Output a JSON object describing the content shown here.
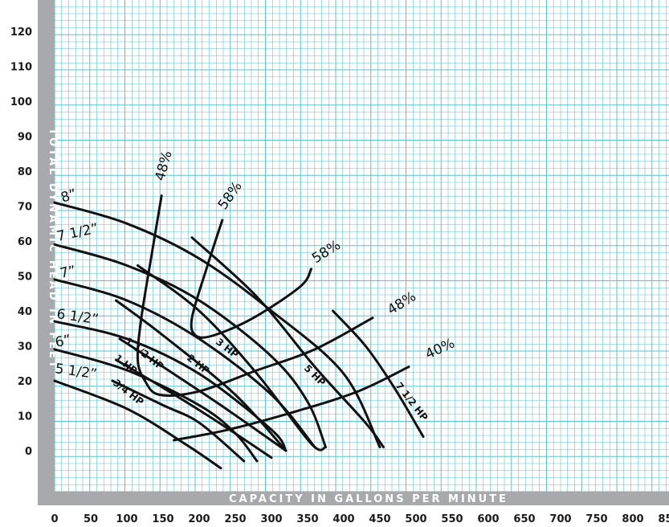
{
  "chart_data": {
    "type": "line",
    "xlabel": "CAPACITY IN GALLONS PER MINUTE",
    "ylabel": "TOTAL DYNAMIC HEAD IN FEET",
    "x_ticks": [
      "0",
      "50",
      "100",
      "150",
      "200",
      "250",
      "300",
      "350",
      "400",
      "450",
      "500",
      "550",
      "600",
      "650",
      "700",
      "750",
      "800",
      "850"
    ],
    "y_ticks": [
      "0",
      "10",
      "20",
      "30",
      "40",
      "50",
      "60",
      "70",
      "80",
      "90",
      "100",
      "110",
      "120"
    ],
    "xlim": [
      0,
      850
    ],
    "ylim": [
      -10,
      130
    ],
    "grid": true,
    "colors": {
      "grid": "#5bc3cc",
      "axis_band": "#a7a9ac",
      "curve": "#111111"
    },
    "impeller_curves": [
      {
        "label": "8”",
        "points": [
          [
            0,
            71
          ],
          [
            100,
            65
          ],
          [
            200,
            55
          ],
          [
            300,
            40
          ],
          [
            400,
            22
          ],
          [
            450,
            1
          ]
        ]
      },
      {
        "label": "7 1/2”",
        "points": [
          [
            0,
            59
          ],
          [
            100,
            53
          ],
          [
            200,
            43
          ],
          [
            300,
            27
          ],
          [
            350,
            14
          ],
          [
            375,
            1
          ]
        ]
      },
      {
        "label": "7”",
        "points": [
          [
            0,
            49
          ],
          [
            100,
            43
          ],
          [
            200,
            32
          ],
          [
            300,
            16
          ],
          [
            360,
            1
          ]
        ]
      },
      {
        "label": "6 1/2”",
        "points": [
          [
            0,
            37
          ],
          [
            100,
            32
          ],
          [
            200,
            22
          ],
          [
            300,
            6
          ],
          [
            320,
            0
          ]
        ]
      },
      {
        "label": "6”",
        "points": [
          [
            0,
            29
          ],
          [
            100,
            23
          ],
          [
            200,
            13
          ],
          [
            250,
            5
          ],
          [
            280,
            -3
          ]
        ]
      },
      {
        "label": "5 1/2”",
        "points": [
          [
            0,
            20
          ],
          [
            100,
            12
          ],
          [
            180,
            2
          ],
          [
            230,
            -5
          ]
        ]
      }
    ],
    "hp_curves": [
      {
        "label": "3/4 HP",
        "points": [
          [
            80,
            20
          ],
          [
            150,
            13
          ],
          [
            200,
            8
          ],
          [
            262,
            -3
          ]
        ]
      },
      {
        "label": "1 HP",
        "points": [
          [
            85,
            26
          ],
          [
            150,
            18
          ],
          [
            220,
            9
          ],
          [
            300,
            -2
          ]
        ]
      },
      {
        "label": "1 1/2 HP",
        "points": [
          [
            90,
            32
          ],
          [
            150,
            24
          ],
          [
            230,
            13
          ],
          [
            320,
            0
          ]
        ]
      },
      {
        "label": "2 HP",
        "points": [
          [
            85,
            43
          ],
          [
            150,
            33
          ],
          [
            250,
            16
          ],
          [
            320,
            0
          ]
        ]
      },
      {
        "label": "3 HP",
        "points": [
          [
            115,
            53
          ],
          [
            200,
            40
          ],
          [
            280,
            22
          ],
          [
            355,
            2
          ],
          [
            375,
            1
          ]
        ]
      },
      {
        "label": "5 HP",
        "points": [
          [
            190,
            61
          ],
          [
            280,
            44
          ],
          [
            360,
            24
          ],
          [
            430,
            8
          ],
          [
            455,
            1
          ]
        ]
      },
      {
        "label": "7 1/2 HP",
        "points": [
          [
            385,
            40
          ],
          [
            430,
            30
          ],
          [
            470,
            18
          ],
          [
            510,
            4
          ]
        ]
      }
    ],
    "efficiency_curves": [
      {
        "label": "48%",
        "points": [
          [
            148,
            73
          ],
          [
            135,
            57
          ],
          [
            120,
            38
          ],
          [
            115,
            26
          ],
          [
            125,
            20
          ],
          [
            145,
            16
          ],
          [
            200,
            17
          ],
          [
            280,
            23
          ],
          [
            360,
            29
          ],
          [
            440,
            38
          ]
        ]
      },
      {
        "label": "58%",
        "points": [
          [
            232,
            66
          ],
          [
            210,
            52
          ],
          [
            190,
            38
          ],
          [
            195,
            33
          ],
          [
            220,
            33
          ],
          [
            275,
            38
          ],
          [
            340,
            47
          ],
          [
            355,
            52
          ]
        ]
      },
      {
        "label": "40%",
        "points": [
          [
            165,
            3
          ],
          [
            240,
            6
          ],
          [
            330,
            11
          ],
          [
            420,
            17
          ],
          [
            490,
            24
          ]
        ]
      }
    ],
    "annotations": {
      "diameters": [
        "8”",
        "7 1/2”",
        "7”",
        "6 1/2”",
        "6”",
        "5 1/2”"
      ],
      "horsepower": [
        "3/4 HP",
        "1 HP",
        "1 1/2 HP",
        "2 HP",
        "3 HP",
        "5 HP",
        "7 1/2 HP"
      ],
      "efficiency_48_left": "48%",
      "efficiency_58_upper": "58%",
      "efficiency_58_right": "58%",
      "efficiency_48_right": "48%",
      "efficiency_40": "40%"
    }
  }
}
